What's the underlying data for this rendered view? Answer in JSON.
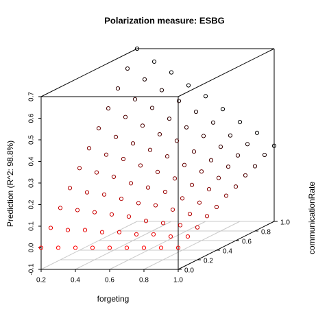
{
  "chart_data": {
    "type": "scatter3d",
    "title": "Polarization measure: ESBG",
    "x_label": "forgeting",
    "y_label": "communicationRate",
    "z_label": "Prediction (R^2: 98.8%)",
    "x": [
      0.2,
      0.2,
      0.2,
      0.2,
      0.2,
      0.2,
      0.2,
      0.2,
      0.2,
      0.2,
      0.2,
      0.3,
      0.3,
      0.3,
      0.3,
      0.3,
      0.3,
      0.3,
      0.3,
      0.3,
      0.3,
      0.3,
      0.4,
      0.4,
      0.4,
      0.4,
      0.4,
      0.4,
      0.4,
      0.4,
      0.4,
      0.4,
      0.4,
      0.5,
      0.5,
      0.5,
      0.5,
      0.5,
      0.5,
      0.5,
      0.5,
      0.5,
      0.5,
      0.5,
      0.6,
      0.6,
      0.6,
      0.6,
      0.6,
      0.6,
      0.6,
      0.6,
      0.6,
      0.6,
      0.6,
      0.7,
      0.7,
      0.7,
      0.7,
      0.7,
      0.7,
      0.7,
      0.7,
      0.7,
      0.7,
      0.7,
      0.8,
      0.8,
      0.8,
      0.8,
      0.8,
      0.8,
      0.8,
      0.8,
      0.8,
      0.8,
      0.8,
      0.9,
      0.9,
      0.9,
      0.9,
      0.9,
      0.9,
      0.9,
      0.9,
      0.9,
      0.9,
      0.9,
      1.0,
      1.0,
      1.0,
      1.0,
      1.0,
      1.0,
      1.0,
      1.0,
      1.0,
      1.0,
      1.0
    ],
    "y": [
      0,
      0.1,
      0.2,
      0.3,
      0.4,
      0.5,
      0.6,
      0.7,
      0.8,
      0.9,
      1.0,
      0,
      0.1,
      0.2,
      0.3,
      0.4,
      0.5,
      0.6,
      0.7,
      0.8,
      0.9,
      1.0,
      0,
      0.1,
      0.2,
      0.3,
      0.4,
      0.5,
      0.6,
      0.7,
      0.8,
      0.9,
      1.0,
      0,
      0.1,
      0.2,
      0.3,
      0.4,
      0.5,
      0.6,
      0.7,
      0.8,
      0.9,
      1.0,
      0,
      0.1,
      0.2,
      0.3,
      0.4,
      0.5,
      0.6,
      0.7,
      0.8,
      0.9,
      1.0,
      0,
      0.1,
      0.2,
      0.3,
      0.4,
      0.5,
      0.6,
      0.7,
      0.8,
      0.9,
      1.0,
      0,
      0.1,
      0.2,
      0.3,
      0.4,
      0.5,
      0.6,
      0.7,
      0.8,
      0.9,
      1.0,
      0,
      0.1,
      0.2,
      0.3,
      0.4,
      0.5,
      0.6,
      0.7,
      0.8,
      0.9,
      1.0,
      0,
      0.1,
      0.2,
      0.3,
      0.4,
      0.5,
      0.6,
      0.7,
      0.8,
      0.9,
      1.0
    ],
    "z": [
      0,
      0.07,
      0.14,
      0.21,
      0.28,
      0.35,
      0.42,
      0.49,
      0.56,
      0.63,
      0.7,
      0,
      0.06,
      0.13,
      0.19,
      0.26,
      0.32,
      0.38,
      0.45,
      0.51,
      0.58,
      0.64,
      0,
      0.06,
      0.12,
      0.18,
      0.24,
      0.3,
      0.35,
      0.41,
      0.47,
      0.53,
      0.59,
      0,
      0.05,
      0.11,
      0.16,
      0.21,
      0.27,
      0.32,
      0.37,
      0.42,
      0.48,
      0.53,
      0,
      0.05,
      0.1,
      0.14,
      0.19,
      0.24,
      0.29,
      0.34,
      0.38,
      0.43,
      0.48,
      0,
      0.04,
      0.08,
      0.13,
      0.17,
      0.21,
      0.25,
      0.29,
      0.34,
      0.38,
      0.42,
      0,
      0.04,
      0.07,
      0.11,
      0.14,
      0.18,
      0.22,
      0.25,
      0.29,
      0.32,
      0.36,
      0,
      0.03,
      0.06,
      0.09,
      0.12,
      0.16,
      0.19,
      0.22,
      0.25,
      0.28,
      0.31,
      0,
      0.03,
      0.05,
      0.08,
      0.1,
      0.13,
      0.15,
      0.18,
      0.2,
      0.23,
      0.25
    ],
    "xlim": [
      0.2,
      1.0
    ],
    "ylim": [
      0,
      1.0
    ],
    "zlim": [
      -0.1,
      0.7
    ],
    "xticks": [
      0.2,
      0.4,
      0.6,
      0.8,
      {
        "value": 1.0,
        "label": "1.0"
      }
    ],
    "yticks": [
      {
        "value": 0,
        "label": "0.0"
      },
      0.2,
      0.4,
      0.6,
      0.8,
      {
        "value": 1.0,
        "label": "1.0"
      }
    ],
    "zticks": [
      -0.1,
      {
        "value": 0,
        "label": "0.0"
      },
      0.1,
      0.2,
      0.3,
      0.4,
      0.5,
      0.6,
      0.7
    ],
    "highlight_colors": [
      "#ff0000",
      "#000000"
    ],
    "grid": true
  }
}
